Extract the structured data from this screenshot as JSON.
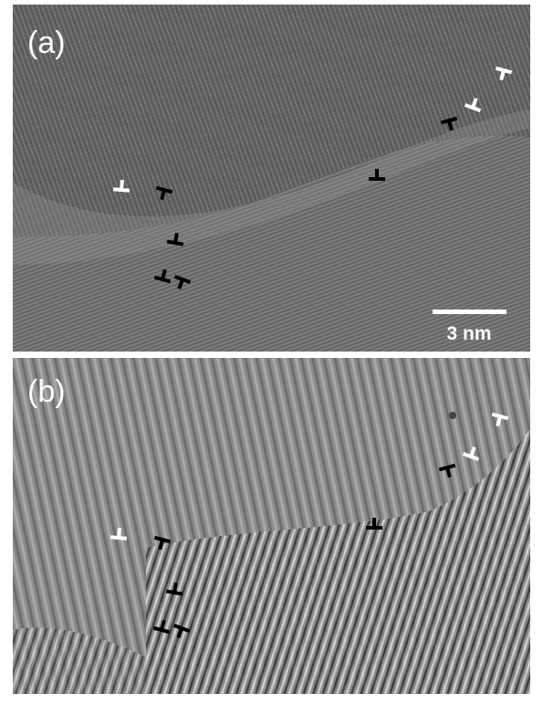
{
  "panels": [
    {
      "label": "(a)",
      "scale_bar": "3 nm"
    },
    {
      "label": "(b)"
    }
  ]
}
